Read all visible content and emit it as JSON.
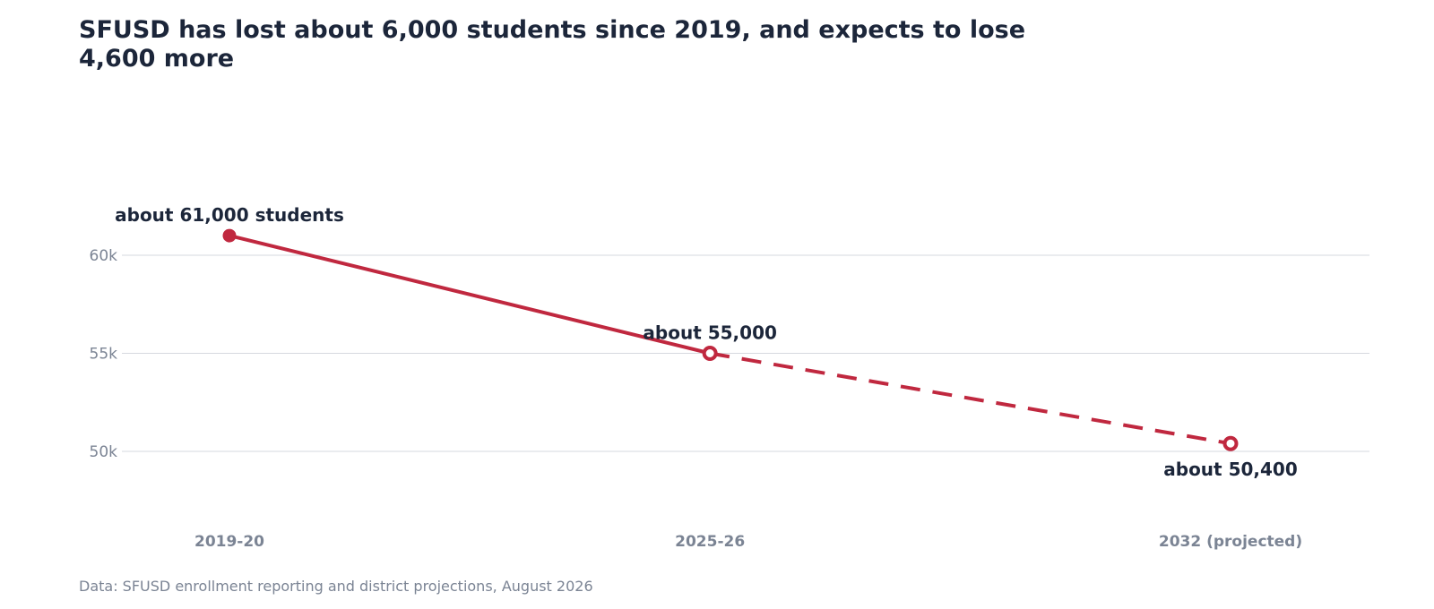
{
  "title": "SFUSD has lost about 6,000 students since 2019, and expects to lose 4,600 more",
  "source": "Data: SFUSD enrollment reporting and district projections, August 2026",
  "colors": {
    "line": "#c0283f",
    "grid": "#d6d9df",
    "tick_text": "#7b8494",
    "annotation_text": "#1c263a"
  },
  "chart_data": {
    "type": "line",
    "title": "SFUSD has lost about 6,000 students since 2019, and expects to lose 4,600 more",
    "xlabel": "",
    "ylabel": "",
    "categories": [
      "2019-20",
      "2025-26",
      "2032 (projected)"
    ],
    "x_positions": [
      2019.5,
      2025.5,
      2032
    ],
    "ylim": [
      46500,
      63500
    ],
    "y_ticks": [
      50000,
      55000,
      60000
    ],
    "y_tick_labels": [
      "50k",
      "55k",
      "60k"
    ],
    "grid": "horizontal",
    "series": [
      {
        "values": [
          61000,
          55000,
          50400
        ],
        "projected_from_index": 1,
        "marker_styles": [
          "filled",
          "hollow",
          "hollow"
        ]
      }
    ],
    "annotations": [
      {
        "point_index": 0,
        "text": "about 61,000 students",
        "placement": "above"
      },
      {
        "point_index": 1,
        "text": "about 55,000",
        "placement": "above"
      },
      {
        "point_index": 2,
        "text": "about 50,400",
        "placement": "below"
      }
    ]
  }
}
